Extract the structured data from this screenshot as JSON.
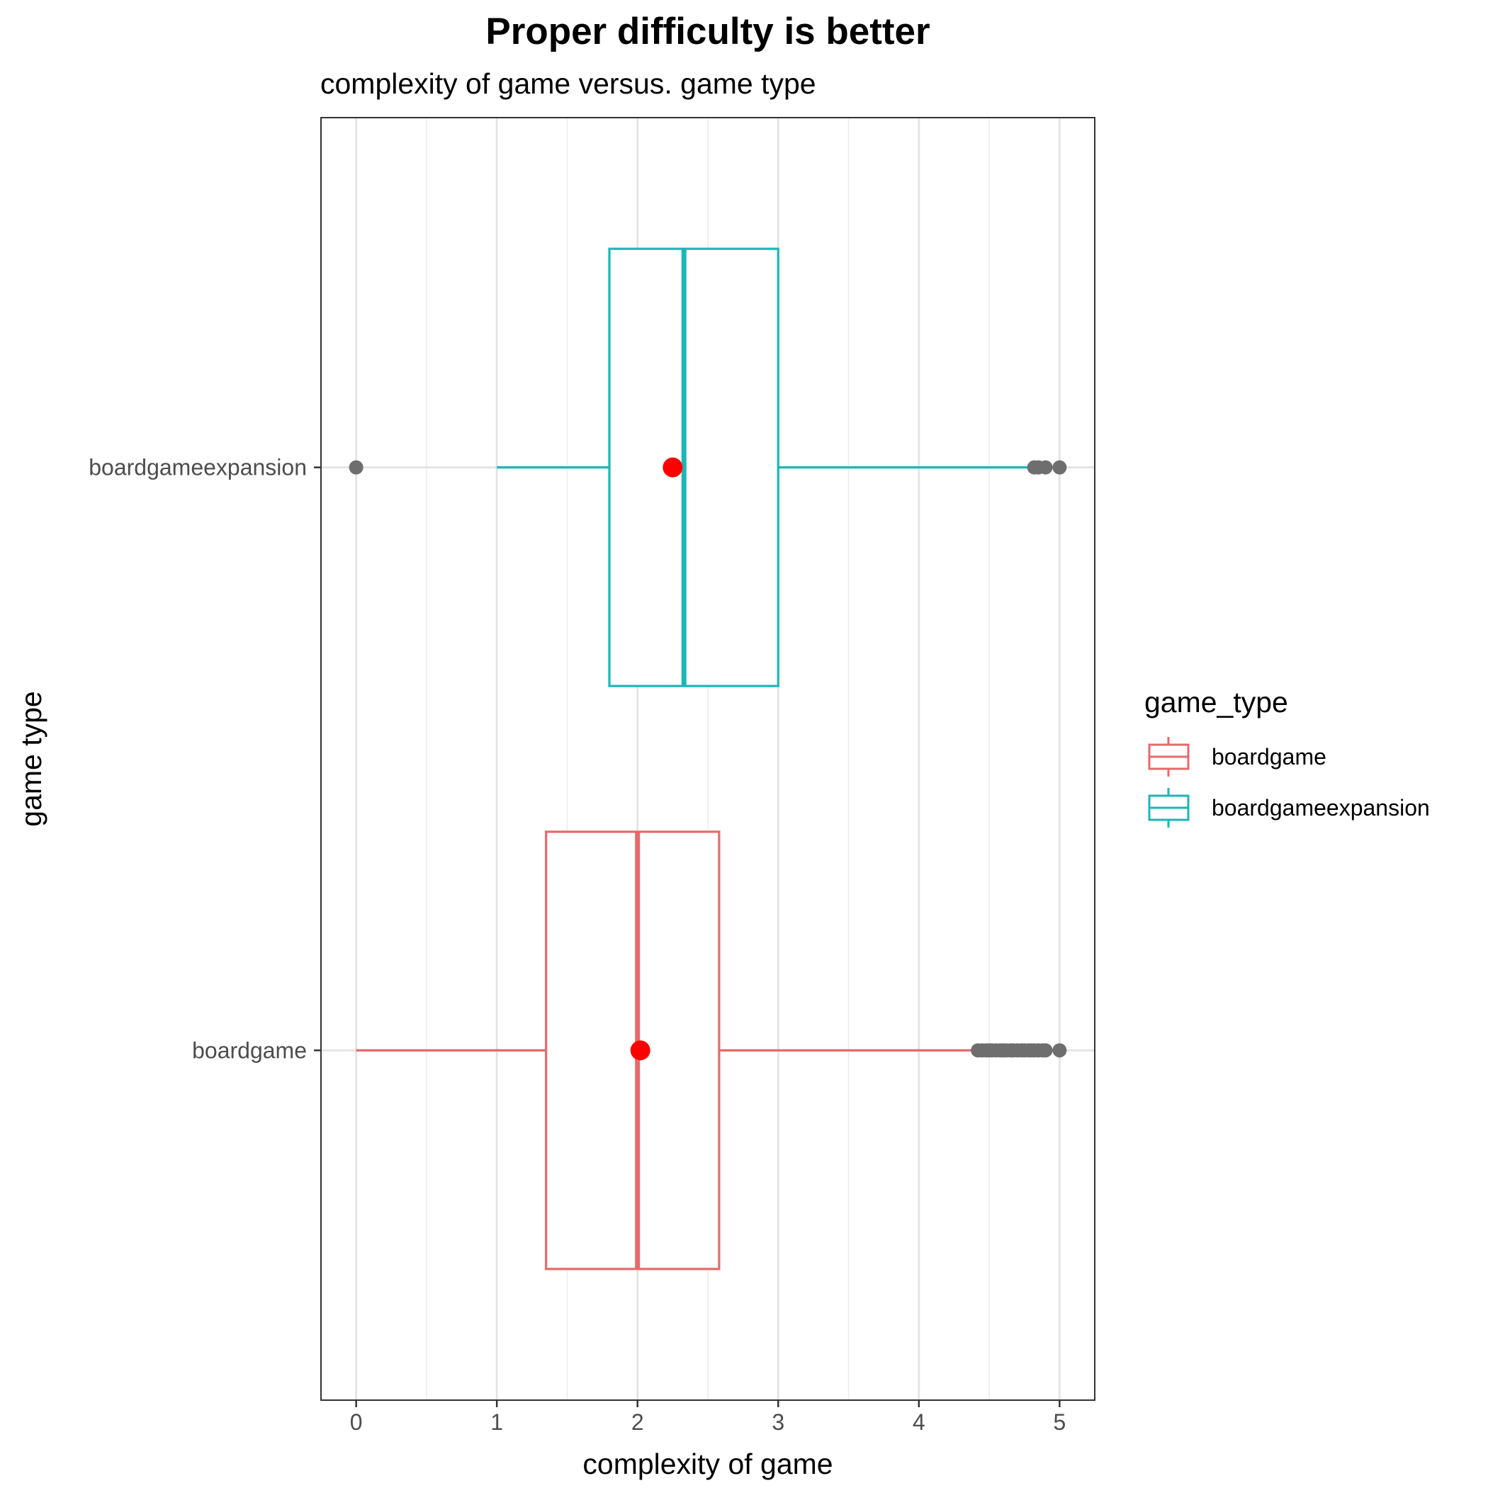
{
  "chart_data": {
    "type": "boxplot",
    "orientation": "horizontal",
    "title": "Proper difficulty is better",
    "subtitle": "complexity of game versus. game type",
    "xlabel": "complexity of game",
    "ylabel": "game type",
    "xlim": [
      -0.25,
      5.25
    ],
    "x_ticks": [
      0,
      1,
      2,
      3,
      4,
      5
    ],
    "x_tick_labels": [
      "0",
      "1",
      "2",
      "3",
      "4",
      "5"
    ],
    "grid": true,
    "legend": {
      "title": "game_type",
      "position": "right",
      "entries": [
        {
          "label": "boardgame",
          "color": "#e8696b"
        },
        {
          "label": "boardgameexpansion",
          "color": "#1db6b6"
        }
      ]
    },
    "categories": [
      "boardgame",
      "boardgameexpansion"
    ],
    "series": [
      {
        "category": "boardgame",
        "color": "#e8696b",
        "whisker_low": 0,
        "q1": 1.35,
        "median": 2.0,
        "q3": 2.58,
        "whisker_high": 4.4,
        "mean": 2.02,
        "outliers": [
          4.42,
          4.45,
          4.48,
          4.5,
          4.52,
          4.55,
          4.58,
          4.6,
          4.62,
          4.65,
          4.67,
          4.7,
          4.73,
          4.75,
          4.78,
          4.8,
          4.82,
          4.85,
          4.88,
          4.9,
          5.0
        ]
      },
      {
        "category": "boardgameexpansion",
        "color": "#1db6b6",
        "whisker_low": 1.0,
        "q1": 1.8,
        "median": 2.33,
        "q3": 3.0,
        "whisker_high": 4.8,
        "mean": 2.25,
        "outliers": [
          0,
          4.82,
          4.85,
          4.9,
          5.0
        ]
      }
    ],
    "mean_marker_color": "#ff0000",
    "outlier_color": "#6e6e6e"
  }
}
